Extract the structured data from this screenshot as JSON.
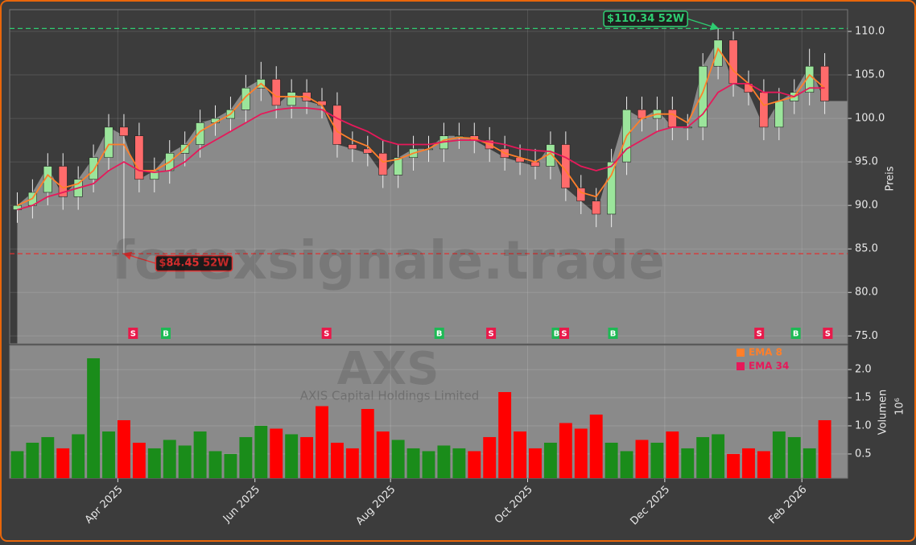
{
  "chart_data": {
    "type": "candlestick",
    "watermark": "forexsignale.trade",
    "symbol": "AXS",
    "company": "AXIS Capital Holdings Limited",
    "y_label": "Preis",
    "y2_label": "Volumen",
    "y2_offset_label": "10⁶",
    "grid": true,
    "up_color": "#9be59b",
    "down_color": "#ff6b6b",
    "volume_up_color": "#1a8c1a",
    "volume_down_color": "#ff0000",
    "area_color": "#8a8a8a",
    "xlim": [
      -0.5,
      54.5
    ],
    "xticks": [
      {
        "value": 6.6,
        "label": "Apr 2025"
      },
      {
        "value": 15.6,
        "label": "Jun 2025"
      },
      {
        "value": 24.5,
        "label": "Aug 2025"
      },
      {
        "value": 33.5,
        "label": "Oct 2025"
      },
      {
        "value": 42.5,
        "label": "Dec 2025"
      },
      {
        "value": 51.5,
        "label": "Feb 2026"
      }
    ],
    "ylim": [
      74.1,
      112.5
    ],
    "yticks": [
      {
        "value": 75,
        "label": "75.0"
      },
      {
        "value": 80,
        "label": "80.0"
      },
      {
        "value": 85,
        "label": "85.0"
      },
      {
        "value": 90,
        "label": "90.0"
      },
      {
        "value": 95,
        "label": "95.0"
      },
      {
        "value": 100,
        "label": "100.0"
      },
      {
        "value": 105,
        "label": "105.0"
      },
      {
        "value": 110,
        "label": "110.0"
      }
    ],
    "y2lim": [
      0.07,
      2.43
    ],
    "y2ticks": [
      0.5,
      {
        "value": 1.0,
        "label": "1.0"
      },
      {
        "value": 1.5,
        "label": "1.5"
      },
      {
        "value": 2.0,
        "label": "2.0"
      }
    ],
    "open": [
      89.5,
      90,
      91.5,
      94.5,
      91,
      93,
      95.5,
      99,
      98,
      93,
      94,
      96,
      97,
      99.5,
      100,
      101,
      103.5,
      104.5,
      101.5,
      103,
      102,
      101.5,
      97,
      96.5,
      96,
      93.5,
      95.5,
      96.5,
      96.5,
      98,
      98,
      97.5,
      96.5,
      95.5,
      95,
      94.5,
      97,
      92,
      90.5,
      89,
      95,
      101,
      100,
      101,
      99,
      99,
      106,
      109,
      104,
      103,
      99,
      102,
      103,
      106
    ],
    "high": [
      91.5,
      93,
      96,
      96,
      94.5,
      97,
      100.5,
      100.5,
      99.5,
      95.5,
      97.5,
      98.5,
      101,
      101.5,
      102.5,
      105,
      106.5,
      106,
      104.5,
      104.5,
      103.5,
      103,
      98.5,
      98,
      97.5,
      97,
      98,
      98,
      99.5,
      99.5,
      99.5,
      99,
      98,
      97,
      96.5,
      98.5,
      98.5,
      93.5,
      92,
      96.5,
      102.5,
      102.5,
      102.5,
      102.5,
      100.5,
      107.5,
      110.34,
      110,
      105.5,
      104.5,
      103.5,
      104.5,
      108,
      107.5
    ],
    "low": [
      88,
      88.5,
      90,
      89.5,
      89.5,
      91.5,
      94,
      84.45,
      91.5,
      91.5,
      92.5,
      94.5,
      95.5,
      98,
      98.5,
      99.5,
      102,
      100,
      100,
      100.5,
      100,
      95.5,
      95,
      94.5,
      92,
      92,
      94,
      95,
      95,
      96.5,
      96,
      95,
      94,
      93.5,
      93,
      93,
      90.5,
      89,
      87.5,
      87.5,
      93.5,
      98.5,
      98.5,
      97.5,
      97.5,
      97.5,
      104.5,
      102.5,
      101.5,
      97.5,
      97.5,
      100.5,
      101.5,
      100.5
    ],
    "close": [
      90,
      91.5,
      94.5,
      91,
      93,
      95.5,
      99,
      98,
      93,
      94,
      96,
      97,
      99.5,
      100,
      101,
      103.5,
      104.5,
      101.5,
      103,
      102,
      101.5,
      97,
      96.5,
      96,
      93.5,
      95.5,
      96.5,
      96.5,
      98,
      98,
      97.5,
      96.5,
      95.5,
      95,
      94.5,
      97,
      92,
      90.5,
      89,
      95,
      101,
      100,
      101,
      99,
      99,
      106,
      109,
      104,
      103,
      99,
      102,
      103,
      106,
      102
    ],
    "volume": [
      0.55,
      0.7,
      0.8,
      0.6,
      0.85,
      2.2,
      0.9,
      1.1,
      0.7,
      0.6,
      0.75,
      0.65,
      0.9,
      0.55,
      0.5,
      0.8,
      1.0,
      0.95,
      0.85,
      0.8,
      1.35,
      0.7,
      0.6,
      1.3,
      0.9,
      0.75,
      0.6,
      0.55,
      0.65,
      0.6,
      0.55,
      0.8,
      1.6,
      0.9,
      0.6,
      0.7,
      1.05,
      0.95,
      1.2,
      0.7,
      0.55,
      0.75,
      0.7,
      0.9,
      0.6,
      0.8,
      0.85,
      0.5,
      0.6,
      0.55,
      0.9,
      0.8,
      0.6,
      1.1
    ],
    "series": [
      {
        "name": "EMA 8",
        "color": "#ff7f2a",
        "values": [
          90,
          90.8,
          93.5,
          92,
          92.5,
          94,
          97,
          97,
          94,
          94,
          95,
          96.5,
          98.5,
          99.5,
          100.5,
          102.5,
          104,
          102.5,
          102.5,
          102.5,
          101.5,
          98.5,
          97.5,
          96.8,
          95,
          95.3,
          96,
          96.5,
          97.5,
          97.8,
          97.7,
          97,
          96,
          95.5,
          95,
          96,
          94,
          91.5,
          91,
          93.5,
          98,
          100,
          100.5,
          100.5,
          99.5,
          103,
          108,
          105.5,
          104,
          101.5,
          102,
          102.5,
          105,
          103.5
        ]
      },
      {
        "name": "EMA 34",
        "color": "#e6195a",
        "values": [
          89.5,
          90,
          91,
          91.5,
          92,
          92.5,
          94,
          95,
          94,
          93.8,
          94,
          95,
          96.5,
          97.5,
          98.5,
          99.5,
          100.5,
          101,
          101.2,
          101.2,
          101,
          100,
          99.2,
          98.5,
          97.5,
          97,
          97,
          97,
          97.3,
          97.5,
          97.5,
          97.3,
          97,
          96.5,
          96.3,
          96.2,
          95.5,
          94.5,
          94,
          94.5,
          96.5,
          97.5,
          98.5,
          99,
          99,
          100.5,
          103,
          104,
          104,
          103,
          103,
          102.5,
          103.5,
          103.5
        ]
      }
    ],
    "high_52w": {
      "index": 46,
      "value": 110.34,
      "label": "$110.34 52W",
      "color": "#2ecc71"
    },
    "low_52w": {
      "index": 7,
      "value": 84.45,
      "label": "$84.45 52W",
      "color": "#e03030"
    },
    "signals": {
      "x": [
        7.6,
        9.75,
        20.3,
        27.7,
        31.1,
        35.4,
        35.9,
        39.1,
        48.7,
        51.1,
        53.2
      ],
      "labels": [
        "S",
        "B",
        "S",
        "B",
        "S",
        "B",
        "S",
        "B",
        "S",
        "B",
        "S"
      ]
    },
    "signal_colors": {
      "S": "#e8194a",
      "B": "#1db954"
    }
  }
}
